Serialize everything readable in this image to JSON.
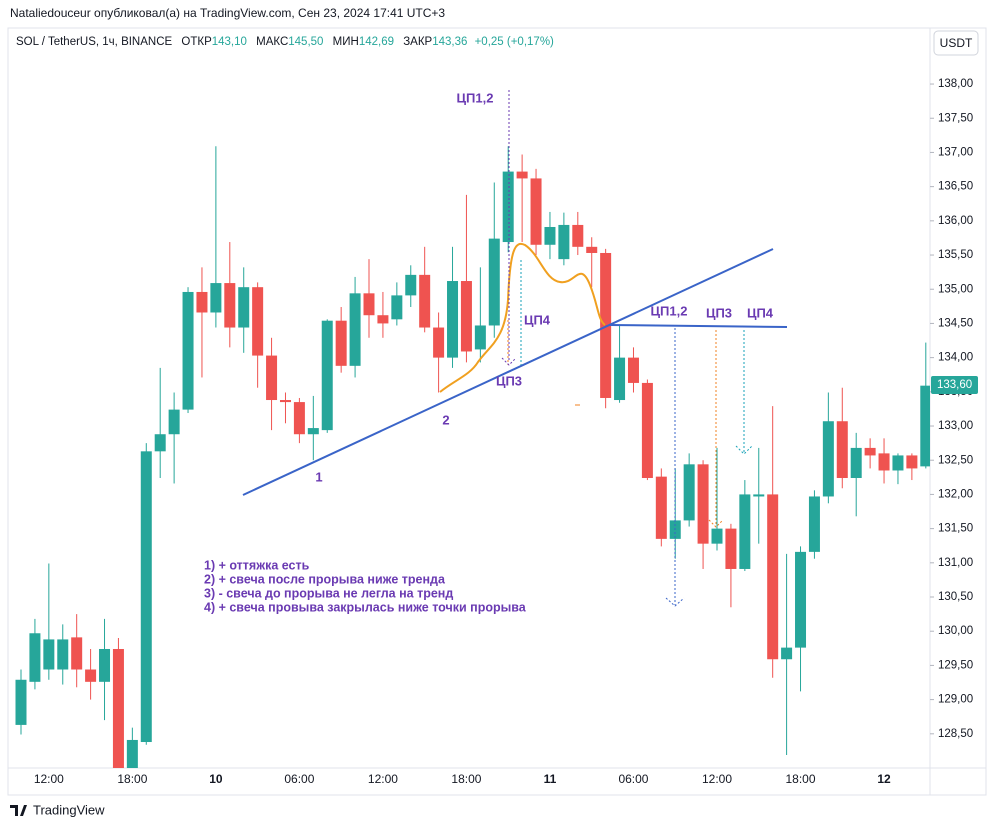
{
  "header": {
    "author_line": "Nataliedouceur опубликовал(а) на TradingView.com, Сен 23, 2024 17:41 UTC+3",
    "symbol": "SOL / TetherUS, 1ч, BINANCE",
    "open_label": "ОТКР",
    "open": "143,10",
    "high_label": "МАКС",
    "high": "145,50",
    "low_label": "МИН",
    "low": "142,69",
    "close_label": "ЗАКР",
    "close": "143,36",
    "change": "+0,25 (+0,17%)",
    "currency_button": "USDT"
  },
  "footer": {
    "brand": "TradingView"
  },
  "chart_data": {
    "type": "candlestick",
    "categories": [
      null,
      null,
      "12:00",
      null,
      null,
      null,
      null,
      null,
      "18:00",
      null,
      null,
      null,
      null,
      null,
      "10",
      null,
      null,
      null,
      null,
      null,
      "06:00",
      null,
      null,
      null,
      null,
      null,
      "12:00",
      null,
      null,
      null,
      null,
      null,
      "18:00",
      null,
      null,
      null,
      null,
      null,
      "11",
      null,
      null,
      null,
      null,
      null,
      "06:00",
      null,
      null,
      null,
      null,
      null,
      "12:00",
      null,
      null,
      null,
      null,
      null,
      "18:00",
      null,
      null,
      null,
      null,
      null,
      "12",
      null,
      null,
      null
    ],
    "open": [
      128.63,
      129.26,
      129.44,
      129.44,
      129.91,
      129.44,
      129.26,
      129.74,
      128.0,
      128.38,
      132.63,
      132.88,
      133.24,
      134.96,
      134.66,
      135.09,
      134.44,
      135.03,
      134.03,
      133.38,
      133.35,
      132.88,
      132.94,
      134.54,
      133.88,
      134.94,
      134.62,
      134.56,
      134.91,
      135.21,
      134.44,
      134.0,
      135.12,
      134.12,
      134.47,
      135.69,
      136.72,
      136.62,
      135.65,
      135.44,
      135.94,
      135.62,
      135.53,
      133.38,
      134.0,
      133.63,
      132.26,
      131.35,
      131.62,
      132.44,
      131.28,
      131.5,
      130.91,
      131.97,
      132.0,
      129.59,
      129.76,
      131.16,
      131.97,
      133.07,
      132.24,
      132.68,
      132.6,
      132.35,
      132.57,
      132.41
    ],
    "high": [
      129.44,
      130.18,
      130.99,
      130.1,
      130.25,
      129.74,
      130.18,
      129.9,
      128.59,
      132.75,
      133.85,
      133.49,
      135.03,
      135.32,
      137.09,
      135.69,
      135.32,
      135.1,
      134.29,
      133.49,
      133.41,
      133.44,
      134.56,
      134.74,
      135.18,
      135.44,
      134.96,
      135.1,
      135.35,
      135.62,
      134.66,
      135.62,
      136.38,
      135.32,
      136.56,
      137.09,
      136.97,
      136.76,
      136.13,
      136.12,
      136.13,
      135.76,
      135.59,
      134.47,
      134.15,
      133.68,
      132.38,
      132.38,
      132.6,
      132.5,
      132.68,
      131.57,
      132.21,
      132.68,
      133.29,
      131.13,
      131.24,
      132.06,
      133.49,
      133.56,
      132.9,
      132.82,
      132.82,
      132.6,
      132.6,
      134.22
    ],
    "low": [
      128.49,
      129.15,
      129.29,
      129.22,
      129.18,
      129.0,
      128.7,
      127.9,
      127.9,
      128.34,
      132.24,
      132.16,
      133.19,
      133.71,
      134.44,
      134.15,
      134.07,
      133.56,
      132.94,
      133.04,
      132.75,
      132.5,
      132.9,
      133.78,
      133.71,
      134.29,
      134.29,
      134.47,
      134.74,
      134.37,
      133.49,
      133.85,
      133.93,
      133.93,
      134.29,
      135.54,
      135.69,
      135.5,
      135.44,
      135.35,
      135.5,
      135.03,
      133.26,
      133.34,
      133.49,
      132.21,
      131.24,
      131.06,
      131.53,
      130.91,
      131.18,
      130.35,
      130.88,
      131.28,
      129.32,
      128.19,
      129.12,
      131.06,
      131.87,
      132.09,
      131.68,
      132.38,
      132.16,
      132.15,
      132.21,
      132.38
    ],
    "close": [
      129.29,
      129.97,
      129.88,
      129.88,
      129.44,
      129.26,
      129.74,
      128.0,
      128.41,
      132.63,
      132.88,
      133.24,
      134.96,
      134.66,
      135.09,
      134.44,
      135.03,
      134.03,
      133.38,
      133.35,
      132.88,
      132.97,
      134.54,
      133.88,
      134.94,
      134.62,
      134.5,
      134.91,
      135.21,
      134.44,
      134.0,
      135.12,
      134.09,
      134.47,
      135.74,
      136.72,
      136.62,
      135.65,
      135.91,
      135.94,
      135.62,
      135.53,
      133.41,
      134.0,
      133.63,
      132.24,
      131.35,
      131.62,
      132.44,
      131.28,
      131.5,
      130.91,
      132.0,
      132.0,
      129.59,
      129.76,
      131.16,
      131.97,
      133.07,
      132.24,
      132.68,
      132.57,
      132.35,
      132.57,
      132.38,
      133.59
    ],
    "up_color": "#26a69a",
    "down_color": "#ef5350",
    "ylim": [
      128.0,
      138.41
    ],
    "yticks": [
      {
        "value": 128.5,
        "label": "128,50"
      },
      {
        "value": 129,
        "label": "129,00"
      },
      {
        "value": 129.5,
        "label": "129,50"
      },
      {
        "value": 130,
        "label": "130,00"
      },
      {
        "value": 130.5,
        "label": "130,50"
      },
      {
        "value": 131,
        "label": "131,00"
      },
      {
        "value": 131.5,
        "label": "131,50"
      },
      {
        "value": 132,
        "label": "132,00"
      },
      {
        "value": 132.5,
        "label": "132,50"
      },
      {
        "value": 133,
        "label": "133,00"
      },
      {
        "value": 133.5,
        "label": "133,50"
      },
      {
        "value": 134,
        "label": "134,00"
      },
      {
        "value": 134.5,
        "label": "134,50"
      },
      {
        "value": 135,
        "label": "135,00"
      },
      {
        "value": 135.5,
        "label": "135,50"
      },
      {
        "value": 136,
        "label": "136,00"
      },
      {
        "value": 136.5,
        "label": "136,50"
      },
      {
        "value": 137,
        "label": "137,00"
      },
      {
        "value": 137.5,
        "label": "137,50"
      },
      {
        "value": 138,
        "label": "138,00"
      }
    ],
    "last_price": {
      "value": 133.6,
      "label": "133,60"
    },
    "annotations": [
      "ЦП1,2",
      "ЦП4",
      "ЦП3",
      "1",
      "2",
      "ЦП1,2",
      "ЦП3",
      "ЦП4"
    ],
    "notes": [
      "1) + оттяжка есть",
      "2) + свеча после прорыва ниже тренда",
      "3) - свеча до прорыва не легла на тренд",
      "4) + свеча провыва закрылась ниже точки прорыва"
    ]
  }
}
